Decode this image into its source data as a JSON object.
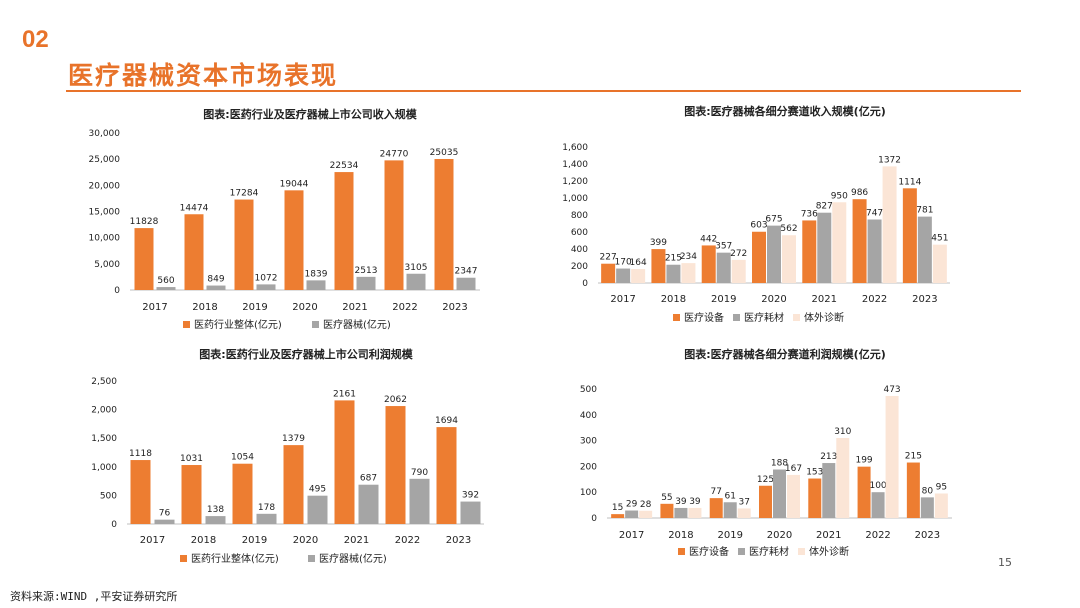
{
  "section_number": "02",
  "page_title": "医疗器械资本市场表现",
  "source": "资料来源:WIND ,平安证券研究所",
  "page_number": "15",
  "colors": {
    "orange": "#ed7d31",
    "gray": "#a5a5a5",
    "peach": "#fbe5d6",
    "accent": "#e8732a"
  },
  "chart_data": [
    {
      "type": "bar",
      "title": "图表:医药行业及医疗器械上市公司收入规模",
      "categories": [
        "2017",
        "2018",
        "2019",
        "2020",
        "2021",
        "2022",
        "2023"
      ],
      "ylim": [
        0,
        30000
      ],
      "yticks": [
        0,
        5000,
        10000,
        15000,
        20000,
        25000,
        30000
      ],
      "ytick_labels": [
        "0",
        "5,000",
        "10,000",
        "15,000",
        "20,000",
        "25,000",
        "30,000"
      ],
      "series": [
        {
          "name": "医药行业整体(亿元)",
          "values": [
            11828,
            14474,
            17284,
            19044,
            22534,
            24770,
            25035
          ]
        },
        {
          "name": "医疗器械(亿元)",
          "values": [
            560,
            849,
            1072,
            1839,
            2513,
            3105,
            2347
          ]
        }
      ]
    },
    {
      "type": "bar",
      "title": "图表:医疗器械各细分赛道收入规模(亿元)",
      "categories": [
        "2017",
        "2018",
        "2019",
        "2020",
        "2021",
        "2022",
        "2023"
      ],
      "ylim": [
        0,
        1600
      ],
      "yticks": [
        0,
        200,
        400,
        600,
        800,
        1000,
        1200,
        1400,
        1600
      ],
      "ytick_labels": [
        "0",
        "200",
        "400",
        "600",
        "800",
        "1,000",
        "1,200",
        "1,400",
        "1,600"
      ],
      "series": [
        {
          "name": "医疗设备",
          "values": [
            227,
            399,
            442,
            603,
            736,
            986,
            1114
          ]
        },
        {
          "name": "医疗耗材",
          "values": [
            170,
            215,
            357,
            675,
            827,
            747,
            781
          ]
        },
        {
          "name": "体外诊断",
          "values": [
            164,
            234,
            272,
            562,
            950,
            1372,
            451
          ]
        }
      ]
    },
    {
      "type": "bar",
      "title": "图表:医药行业及医疗器械上市公司利润规模",
      "categories": [
        "2017",
        "2018",
        "2019",
        "2020",
        "2021",
        "2022",
        "2023"
      ],
      "ylim": [
        0,
        2500
      ],
      "yticks": [
        0,
        500,
        1000,
        1500,
        2000,
        2500
      ],
      "ytick_labels": [
        "0",
        "500",
        "1,000",
        "1,500",
        "2,000",
        "2,500"
      ],
      "series": [
        {
          "name": "医药行业整体(亿元)",
          "values": [
            1118,
            1031,
            1054,
            1379,
            2161,
            2062,
            1694
          ]
        },
        {
          "name": "医疗器械(亿元)",
          "values": [
            76,
            138,
            178,
            495,
            687,
            790,
            392
          ]
        }
      ]
    },
    {
      "type": "bar",
      "title": "图表:医疗器械各细分赛道利润规模(亿元)",
      "categories": [
        "2017",
        "2018",
        "2019",
        "2020",
        "2021",
        "2022",
        "2023"
      ],
      "ylim": [
        0,
        500
      ],
      "yticks": [
        0,
        100,
        200,
        300,
        400,
        500
      ],
      "ytick_labels": [
        "0",
        "100",
        "200",
        "300",
        "400",
        "500"
      ],
      "series": [
        {
          "name": "医疗设备",
          "values": [
            15,
            55,
            77,
            125,
            153,
            199,
            215
          ]
        },
        {
          "name": "医疗耗材",
          "values": [
            29,
            39,
            61,
            188,
            213,
            100,
            80
          ]
        },
        {
          "name": "体外诊断",
          "values": [
            28,
            39,
            37,
            167,
            310,
            473,
            95
          ]
        }
      ]
    }
  ]
}
